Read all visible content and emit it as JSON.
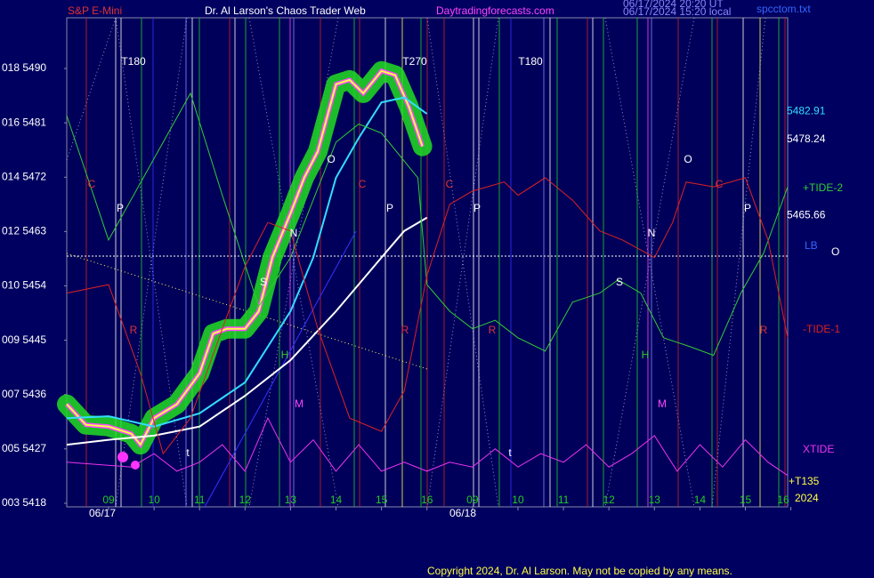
{
  "chart_data": {
    "type": "line",
    "title": "S&P E-Mini",
    "subtitle": "Dr. Al Larson's Chaos Trader Web",
    "site": "Daytradingforecasts.com",
    "timestamps": [
      "06/17/2024 20:20 UT",
      "06/17/2024 15:20 local"
    ],
    "file": "spcctom.txt",
    "copyright": "Copyright 2024, Dr. Al Larson. May not be copied by any means.",
    "xlim": [
      -0.92,
      14.93
    ],
    "xticks": [
      {
        "value": 0,
        "label": "09"
      },
      {
        "value": 1,
        "label": "10"
      },
      {
        "value": 2,
        "label": "11"
      },
      {
        "value": 3,
        "label": "12"
      },
      {
        "value": 4,
        "label": "13"
      },
      {
        "value": 5,
        "label": "14"
      },
      {
        "value": 6,
        "label": "15"
      },
      {
        "value": 7,
        "label": "16"
      },
      {
        "value": 8,
        "label": "09"
      },
      {
        "value": 9,
        "label": "10"
      },
      {
        "value": 10,
        "label": "11"
      },
      {
        "value": 11,
        "label": "12"
      },
      {
        "value": 12,
        "label": "13"
      },
      {
        "value": 13,
        "label": "14"
      },
      {
        "value": 14,
        "label": "15"
      },
      {
        "value": 15,
        "label": "16"
      }
    ],
    "date_labels": [
      "06/17",
      "06/18"
    ],
    "ylim": [
      5417.4,
      5498.4
    ],
    "yticks": [
      {
        "value": 5490,
        "label": "018 5490"
      },
      {
        "value": 5481,
        "label": "016 5481"
      },
      {
        "value": 5472,
        "label": "014 5472"
      },
      {
        "value": 5463,
        "label": "012 5463"
      },
      {
        "value": 5454,
        "label": "010 5454"
      },
      {
        "value": 5445,
        "label": "009 5445"
      },
      {
        "value": 5436,
        "label": "007 5436"
      },
      {
        "value": 5427,
        "label": "005 5427"
      },
      {
        "value": 5418,
        "label": "003 5418"
      }
    ],
    "series": [
      {
        "color": "#ffff44",
        "x": [
          -0.92,
          -0.5,
          0,
          0.5,
          0.7,
          1,
          1.5,
          2,
          2.3,
          2.6,
          3,
          3.3,
          3.6,
          4,
          4.3,
          4.6,
          5,
          5.3,
          5.6,
          6,
          6.3,
          6.6,
          6.9
        ],
        "values": [
          5434.4,
          5431.0,
          5430.7,
          5429.5,
          5427.7,
          5432.1,
          5434.4,
          5439.5,
          5446.1,
          5446.9,
          5446.9,
          5449.8,
          5458.7,
          5466.0,
          5471.9,
          5476.3,
          5487.4,
          5488.1,
          5485.9,
          5489.6,
          5488.9,
          5483.7,
          5477.1
        ]
      },
      {
        "color": "#33ddff",
        "x": [
          -0.92,
          0,
          1,
          2,
          3,
          4,
          4.5,
          5,
          5.5,
          6,
          6.5,
          7
        ],
        "values": [
          5432.1,
          5432.4,
          5430.7,
          5432.9,
          5438.0,
          5449.8,
          5458.7,
          5471.9,
          5478.5,
          5484.4,
          5485.2,
          5482.5
        ]
      },
      {
        "color": "#ffffff",
        "x": [
          -0.92,
          0,
          1,
          2,
          3,
          4,
          5,
          6,
          6.5,
          7
        ],
        "values": [
          5427.7,
          5428.5,
          5429.2,
          5430.7,
          5435.8,
          5441.7,
          5449.8,
          5458.7,
          5463.1,
          5465.3
        ]
      },
      {
        "name": "+TIDE-2",
        "color": "#33cc33",
        "x": [
          -0.92,
          0,
          1.8,
          2.5,
          3.3,
          4,
          5,
          5.5,
          6,
          6.8,
          7,
          7.5,
          8,
          8.5,
          9,
          9.6,
          10.2,
          10.8,
          11.2,
          11.7,
          12.2,
          12.8,
          13.3,
          13.9,
          14.4,
          14.93
        ],
        "values": [
          5482.2,
          5461.6,
          5485.9,
          5469.0,
          5450.6,
          5458.7,
          5477.8,
          5480.8,
          5479.3,
          5471.9,
          5454.2,
          5449.8,
          5446.9,
          5448.3,
          5445.4,
          5443.2,
          5451.3,
          5452.8,
          5455.0,
          5452.8,
          5445.4,
          5443.9,
          5442.5,
          5452.8,
          5459.4,
          5470.4
        ]
      },
      {
        "name": "-TIDE-1",
        "color": "#dd2222",
        "x": [
          -0.92,
          0,
          0.7,
          1.2,
          1.8,
          2.5,
          3,
          3.5,
          4,
          4.6,
          5.3,
          6,
          6.5,
          7,
          7.5,
          8,
          8.7,
          9,
          9.6,
          10.2,
          10.8,
          11.3,
          12,
          12.4,
          12.7,
          13.3,
          14,
          14.5,
          14.93
        ],
        "values": [
          5452.8,
          5454.2,
          5439.5,
          5426.2,
          5432.1,
          5446.9,
          5457.2,
          5464.5,
          5463.1,
          5446.9,
          5432.1,
          5429.9,
          5436.6,
          5455.7,
          5467.5,
          5469.7,
          5471.2,
          5469.0,
          5471.9,
          5468.2,
          5463.1,
          5461.6,
          5458.7,
          5464.5,
          5471.2,
          5470.4,
          5471.9,
          5461.6,
          5445.4
        ]
      },
      {
        "name": "XTIDE",
        "color": "#ee33ee",
        "x": [
          -0.92,
          0.5,
          1,
          1.5,
          2,
          2.5,
          3,
          3.5,
          4,
          4.5,
          5,
          5.5,
          6,
          6.5,
          7,
          7.5,
          8,
          8.5,
          9,
          9.5,
          10,
          10.5,
          11,
          11.5,
          12,
          12.5,
          13,
          13.5,
          14,
          14.5,
          14.93
        ],
        "values": [
          5424.8,
          5424.0,
          5426.2,
          5423.3,
          5424.8,
          5427.7,
          5423.3,
          5432.1,
          5424.8,
          5428.5,
          5423.3,
          5427.7,
          5423.3,
          5424.8,
          5423.3,
          5424.8,
          5424.0,
          5427.0,
          5424.0,
          5426.2,
          5424.8,
          5427.7,
          5424.0,
          5426.2,
          5429.2,
          5423.3,
          5427.7,
          5424.0,
          5428.5,
          5424.8,
          5422.6
        ]
      }
    ],
    "level_labels": [
      5482.91,
      5478.24,
      5465.66
    ],
    "right_labels": [
      "LB",
      "O",
      "+T135",
      "2024"
    ],
    "annotations": [
      "T180",
      "T270",
      "T180",
      "C",
      "C",
      "C",
      "C",
      "P",
      "P",
      "P",
      "P",
      "R",
      "R",
      "R",
      "R",
      "O",
      "O",
      "N",
      "N",
      "S",
      "S",
      "H",
      "H",
      "M",
      "M",
      "t",
      "t"
    ]
  }
}
